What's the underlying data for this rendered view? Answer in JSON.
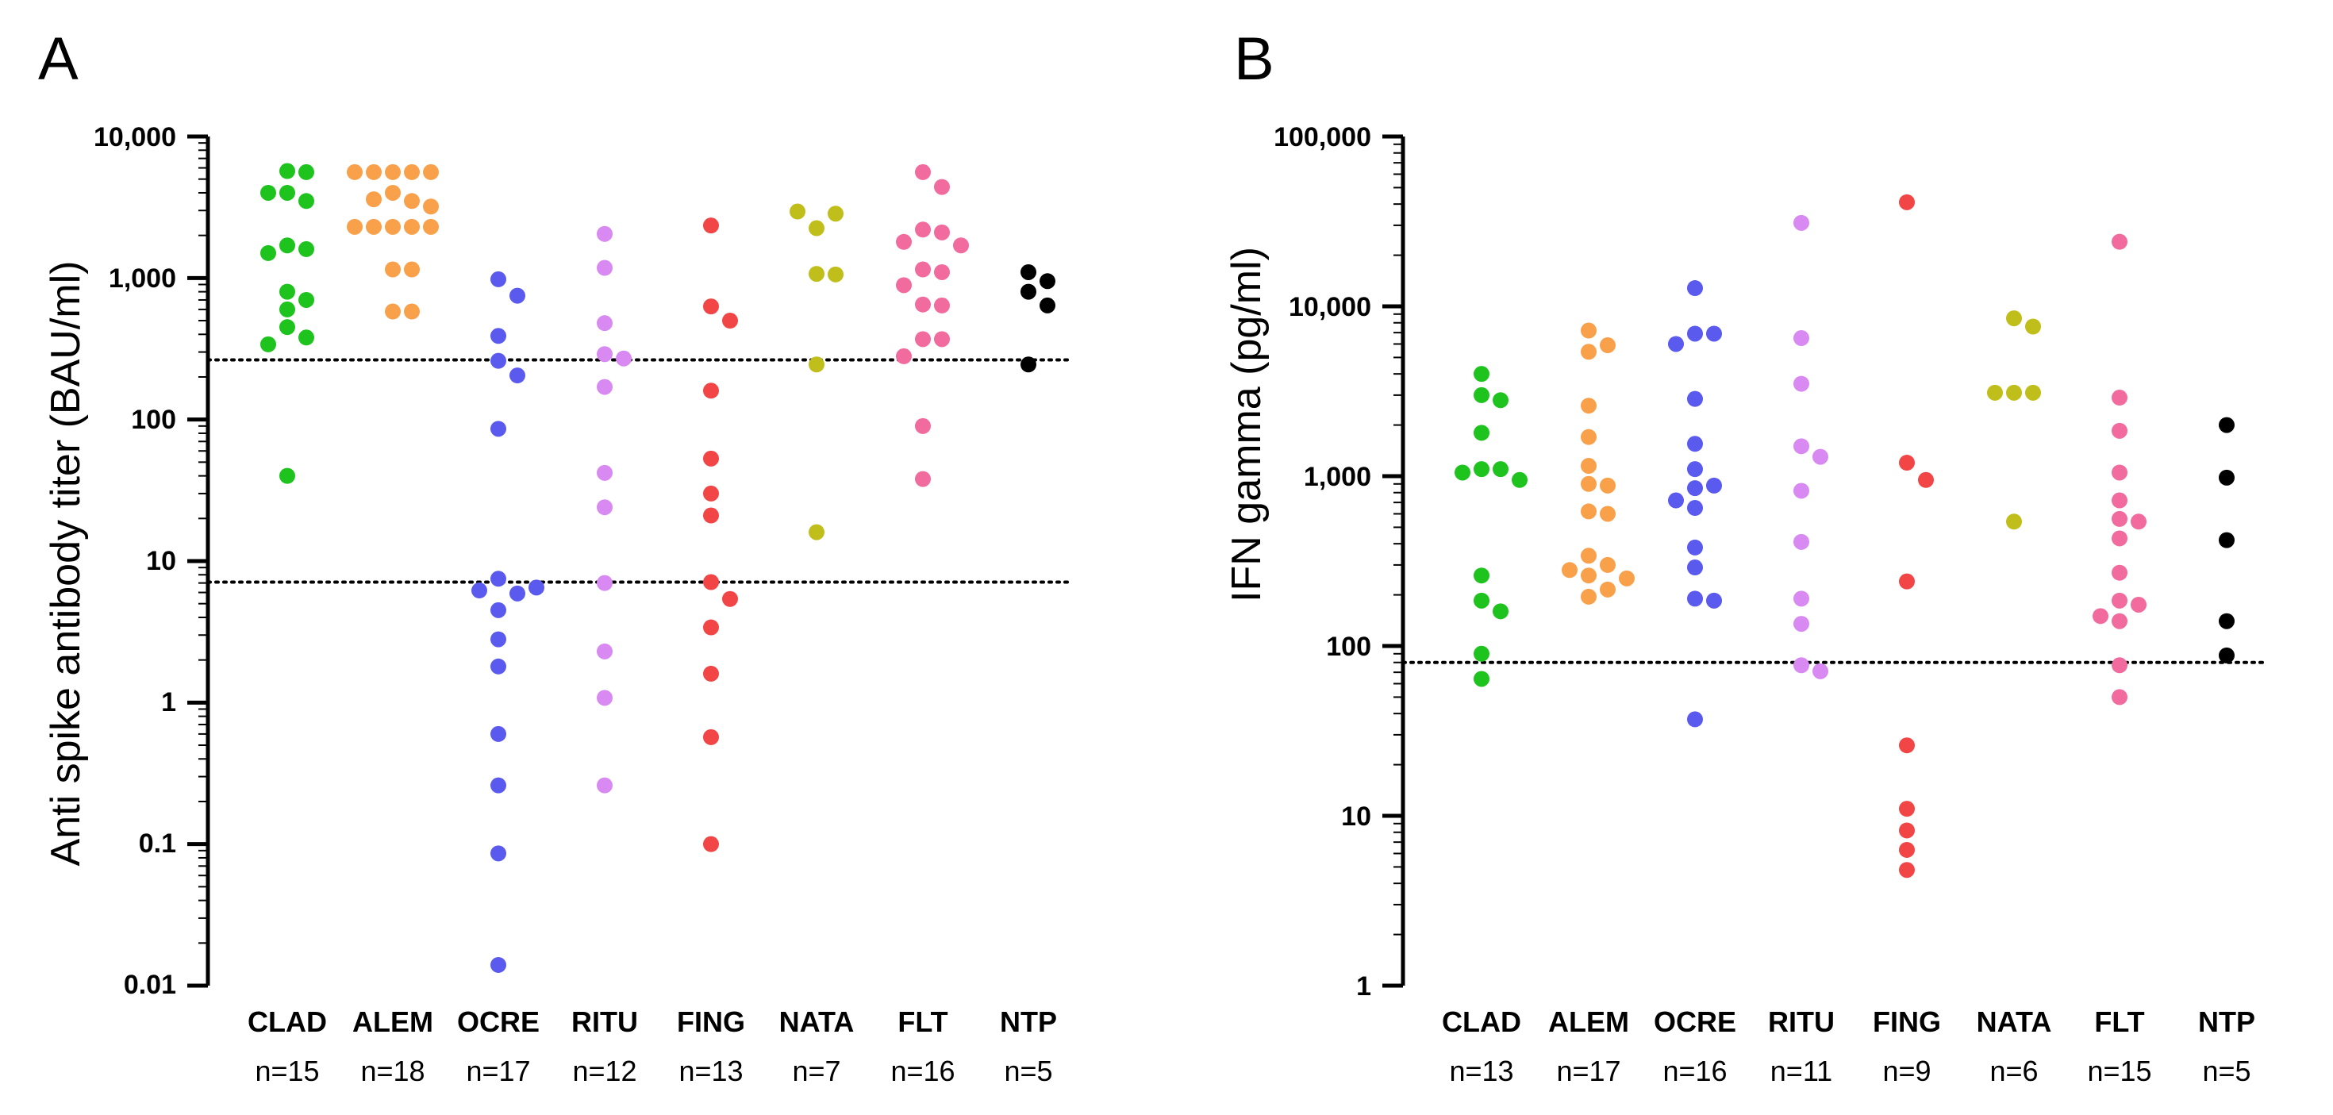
{
  "chart_data": [
    {
      "type": "scatter",
      "panel": "A",
      "ylabel": "Anti spike antibody titer (BAU/ml)",
      "yscale": "log",
      "ylim": [
        0.01,
        10000
      ],
      "yticks": [
        "10,000",
        "1,000",
        "100",
        "10",
        "1",
        "0.1",
        "0.01"
      ],
      "thresholds": [
        264,
        7.1
      ],
      "groups": [
        {
          "name": "CLAD",
          "n": "n=15",
          "color": "#1ec31e",
          "values": [
            5700,
            5600,
            4000,
            3500,
            4000,
            1700,
            1600,
            1500,
            800,
            700,
            600,
            450,
            380,
            340,
            40
          ]
        },
        {
          "name": "ALEM",
          "n": "n=18",
          "color": "#f9a04a",
          "values": [
            5600,
            5600,
            5600,
            5600,
            5600,
            4000,
            3500,
            3600,
            3200,
            2300,
            2300,
            2300,
            2300,
            2300,
            1150,
            1150,
            580,
            580
          ]
        },
        {
          "name": "OCRE",
          "n": "n=17",
          "color": "#5a5aee",
          "values": [
            980,
            750,
            390,
            260,
            205,
            86,
            7.5,
            5.9,
            6.2,
            4.5,
            2.8,
            1.8,
            0.6,
            0.26,
            0.086,
            0.014,
            6.5
          ]
        },
        {
          "name": "RITU",
          "n": "n=12",
          "color": "#d88af2",
          "values": [
            2050,
            1180,
            480,
            290,
            270,
            170,
            42,
            24,
            7,
            2.3,
            1.08,
            0.26
          ]
        },
        {
          "name": "FING",
          "n": "n=13",
          "color": "#f24545",
          "values": [
            2350,
            630,
            500,
            160,
            53,
            30,
            21,
            7.1,
            5.4,
            3.4,
            1.6,
            0.57,
            0.1
          ]
        },
        {
          "name": "NATA",
          "n": "n=7",
          "color": "#c0be1a",
          "values": [
            2250,
            2850,
            2950,
            1070,
            1060,
            245,
            16
          ]
        },
        {
          "name": "FLT",
          "n": "n=16",
          "color": "#f26b9e",
          "values": [
            5600,
            4400,
            2200,
            2100,
            1800,
            1700,
            1150,
            1100,
            890,
            650,
            640,
            370,
            370,
            280,
            90,
            38
          ]
        },
        {
          "name": "NTP",
          "n": "n=5",
          "color": "#000000",
          "values": [
            1100,
            950,
            800,
            640,
            245
          ]
        }
      ]
    },
    {
      "type": "scatter",
      "panel": "B",
      "ylabel": "IFN gamma (pg/ml)",
      "yscale": "log",
      "ylim": [
        1,
        100000
      ],
      "yticks": [
        "100,000",
        "10,000",
        "1,000",
        "100",
        "10",
        "1"
      ],
      "thresholds": [
        80
      ],
      "groups": [
        {
          "name": "CLAD",
          "n": "n=13",
          "color": "#1ec31e",
          "values": [
            4000,
            3000,
            2800,
            1800,
            1100,
            1100,
            1050,
            950,
            260,
            185,
            160,
            90,
            64
          ]
        },
        {
          "name": "ALEM",
          "n": "n=17",
          "color": "#f9a04a",
          "values": [
            7200,
            5900,
            5400,
            2600,
            1700,
            1150,
            900,
            880,
            620,
            600,
            340,
            300,
            280,
            260,
            250,
            215,
            195
          ]
        },
        {
          "name": "OCRE",
          "n": "n=16",
          "color": "#5a5aee",
          "values": [
            12800,
            6900,
            6900,
            6000,
            2850,
            1550,
            1100,
            880,
            850,
            720,
            650,
            380,
            290,
            190,
            185,
            37
          ]
        },
        {
          "name": "RITU",
          "n": "n=11",
          "color": "#d88af2",
          "values": [
            31000,
            6500,
            3500,
            1500,
            1300,
            820,
            410,
            190,
            135,
            77,
            71
          ]
        },
        {
          "name": "FING",
          "n": "n=9",
          "color": "#f24545",
          "values": [
            41000,
            1200,
            950,
            240,
            26,
            11,
            8.2,
            6.3,
            4.8
          ]
        },
        {
          "name": "NATA",
          "n": "n=6",
          "color": "#c0be1a",
          "values": [
            8500,
            7600,
            3100,
            3100,
            3100,
            540
          ]
        },
        {
          "name": "FLT",
          "n": "n=15",
          "color": "#f26b9e",
          "values": [
            24000,
            2900,
            1850,
            1050,
            720,
            560,
            540,
            430,
            270,
            185,
            175,
            150,
            140,
            77,
            50
          ]
        },
        {
          "name": "NTP",
          "n": "n=5",
          "color": "#000000",
          "values": [
            2000,
            980,
            420,
            140,
            88
          ]
        }
      ]
    }
  ]
}
